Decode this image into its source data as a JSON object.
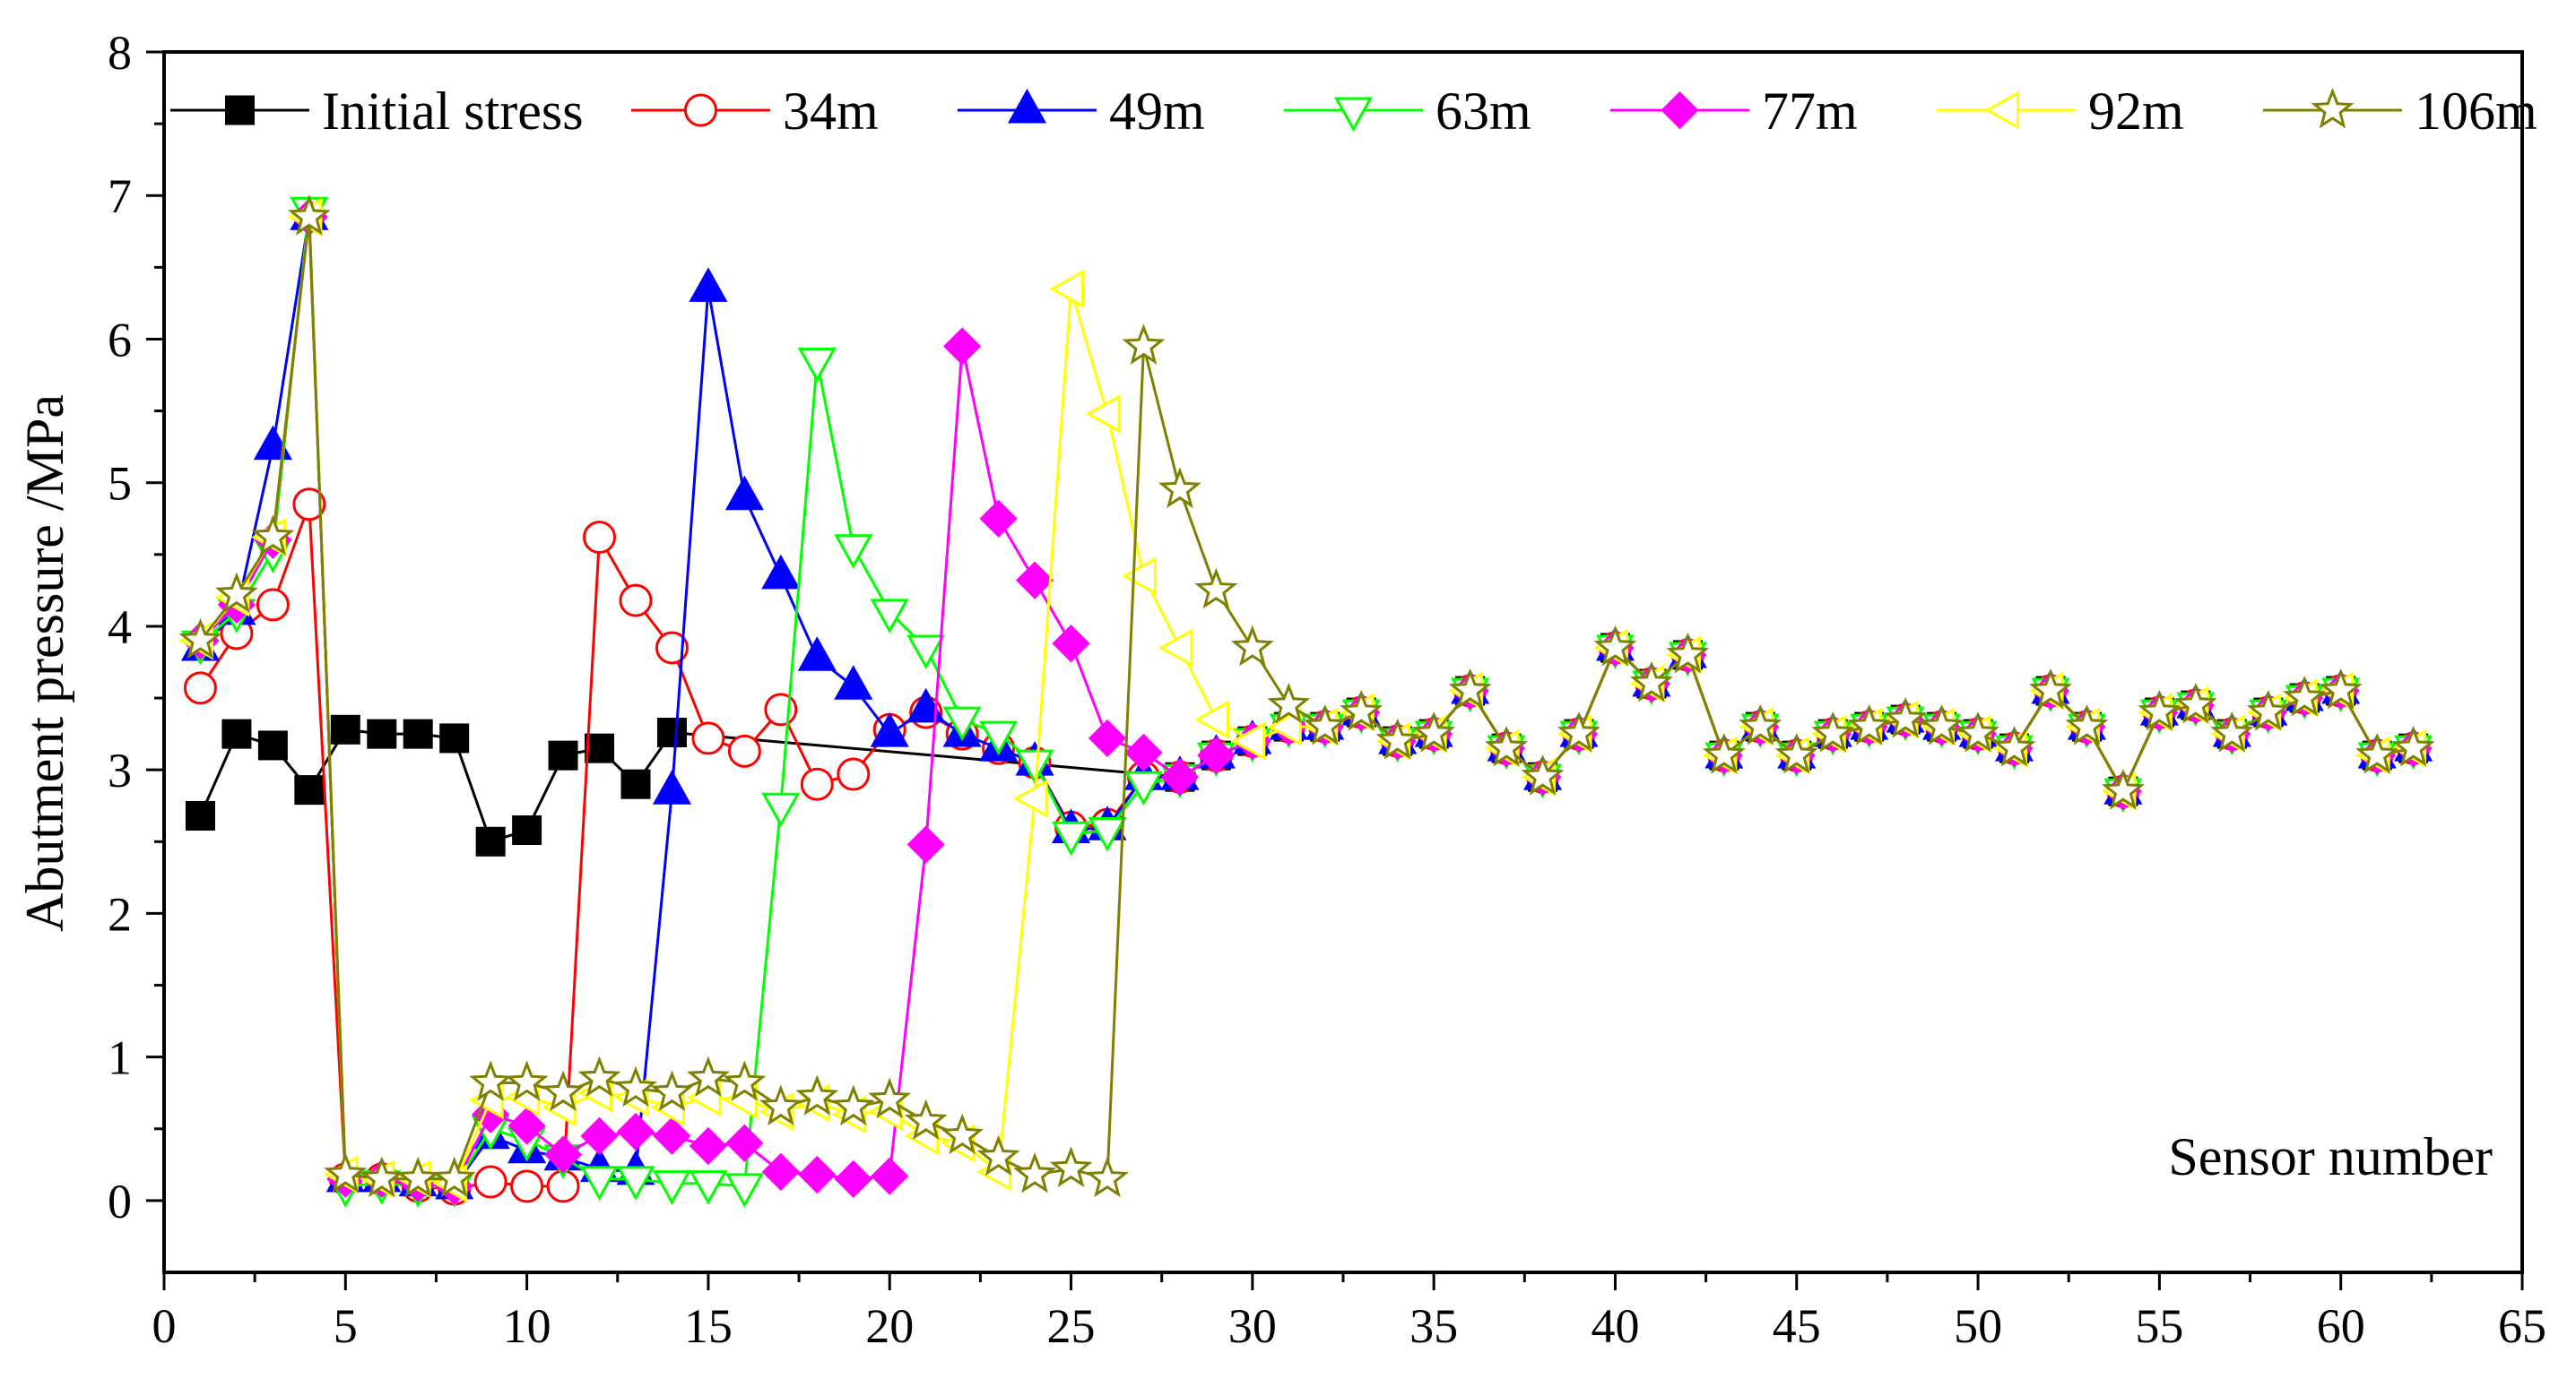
{
  "chart_data": {
    "type": "line",
    "title": "",
    "xlabel": "Sensor number",
    "ylabel": "Abutment pressure /MPa",
    "xlim": [
      0,
      65
    ],
    "ylim": [
      -0.5,
      8
    ],
    "xticks": [
      0,
      5,
      10,
      15,
      20,
      25,
      30,
      35,
      40,
      45,
      50,
      55,
      60,
      65
    ],
    "yticks": [
      0,
      1,
      2,
      3,
      4,
      5,
      6,
      7,
      8
    ],
    "legend_position": "top",
    "tail_x": [
      28,
      29,
      30,
      31,
      32,
      33,
      34,
      35,
      36,
      37,
      38,
      39,
      40,
      41,
      42,
      43,
      44,
      45,
      46,
      47,
      48,
      49,
      50,
      51,
      52,
      53,
      54,
      55,
      56,
      57,
      58,
      59,
      60,
      61,
      62
    ],
    "tail_y": [
      2.95,
      3.1,
      3.2,
      3.3,
      3.3,
      3.4,
      3.2,
      3.25,
      3.55,
      3.15,
      2.95,
      3.25,
      3.85,
      3.6,
      3.8,
      3.1,
      3.3,
      3.1,
      3.25,
      3.3,
      3.35,
      3.3,
      3.25,
      3.15,
      3.55,
      3.3,
      2.85,
      3.4,
      3.45,
      3.25,
      3.4,
      3.5,
      3.55,
      3.1,
      3.15
    ],
    "series": [
      {
        "name": "Initial stress",
        "color": "#000000",
        "marker": "square",
        "x": [
          1,
          2,
          3,
          4,
          5,
          6,
          7,
          8,
          9,
          10,
          11,
          12,
          13,
          14
        ],
        "y": [
          2.68,
          3.25,
          3.17,
          2.86,
          3.28,
          3.25,
          3.25,
          3.22,
          2.5,
          2.58,
          3.1,
          3.15,
          2.9,
          3.26
        ],
        "tail_from": 14
      },
      {
        "name": "34m",
        "color": "#ff0000",
        "marker": "circle",
        "x": [
          1,
          2,
          3,
          4,
          5,
          6,
          7,
          8,
          9,
          10,
          11,
          12,
          13,
          14,
          15,
          16,
          17,
          18,
          19,
          20,
          21,
          22,
          23,
          24,
          25,
          26,
          27
        ],
        "y": [
          3.57,
          3.95,
          4.15,
          4.85,
          0.15,
          0.15,
          0.1,
          0.08,
          0.13,
          0.1,
          0.1,
          4.62,
          4.18,
          3.85,
          3.22,
          3.13,
          3.42,
          2.9,
          2.97,
          3.28,
          3.4,
          3.25,
          3.15,
          3.05,
          2.6,
          2.62,
          2.95
        ],
        "tail_from": 27
      },
      {
        "name": "49m",
        "color": "#0000ff",
        "marker": "triangle-up",
        "x": [
          1,
          2,
          3,
          4,
          5,
          6,
          7,
          8,
          9,
          10,
          11,
          12,
          13,
          14,
          15,
          16,
          17,
          18,
          19,
          20,
          21,
          22,
          23,
          24,
          25,
          26,
          27
        ],
        "y": [
          3.85,
          4.1,
          5.25,
          6.85,
          0.15,
          0.15,
          0.12,
          0.1,
          0.45,
          0.35,
          0.3,
          0.22,
          0.2,
          2.85,
          6.35,
          4.9,
          4.35,
          3.78,
          3.58,
          3.25,
          3.42,
          3.25,
          3.15,
          3.05,
          2.58,
          2.6,
          2.95
        ],
        "tail_from": 27
      },
      {
        "name": "63m",
        "color": "#00ff00",
        "marker": "triangle-down",
        "x": [
          1,
          2,
          3,
          4,
          5,
          6,
          7,
          8,
          9,
          10,
          11,
          12,
          13,
          14,
          15,
          16,
          17,
          18,
          19,
          20,
          21,
          22,
          23,
          24,
          25,
          26,
          27
        ],
        "y": [
          3.88,
          4.1,
          4.52,
          6.9,
          0.1,
          0.12,
          0.1,
          0.1,
          0.5,
          0.42,
          0.3,
          0.15,
          0.15,
          0.12,
          0.12,
          0.1,
          2.75,
          5.85,
          4.55,
          4.1,
          3.85,
          3.35,
          3.25,
          3.05,
          2.55,
          2.58,
          2.9
        ],
        "tail_from": 27
      },
      {
        "name": "77m",
        "color": "#ff00ff",
        "marker": "diamond",
        "x": [
          1,
          2,
          3,
          4,
          5,
          6,
          7,
          8,
          9,
          10,
          11,
          12,
          13,
          14,
          15,
          16,
          17,
          18,
          19,
          20,
          21,
          22,
          23,
          24,
          25,
          26,
          27
        ],
        "y": [
          3.9,
          4.15,
          4.6,
          6.85,
          0.15,
          0.15,
          0.12,
          0.1,
          0.6,
          0.52,
          0.32,
          0.45,
          0.48,
          0.45,
          0.38,
          0.4,
          0.2,
          0.18,
          0.15,
          0.17,
          2.48,
          5.95,
          4.75,
          4.32,
          3.88,
          3.22,
          3.12
        ],
        "tail_from": 27
      },
      {
        "name": "92m",
        "color": "#ffff00",
        "marker": "triangle-left",
        "x": [
          1,
          2,
          3,
          4,
          5,
          6,
          7,
          8,
          9,
          10,
          11,
          12,
          13,
          14,
          15,
          16,
          17,
          18,
          19,
          20,
          21,
          22,
          23,
          24,
          25,
          26,
          27,
          28,
          29
        ],
        "y": [
          3.9,
          4.2,
          4.62,
          6.85,
          0.18,
          0.15,
          0.15,
          0.12,
          0.7,
          0.72,
          0.65,
          0.75,
          0.72,
          0.65,
          0.72,
          0.7,
          0.62,
          0.68,
          0.6,
          0.62,
          0.45,
          0.4,
          0.2,
          2.8,
          6.35,
          5.48,
          4.35,
          3.85,
          3.35
        ],
        "tail_from": 29
      },
      {
        "name": "106m",
        "color": "#808000",
        "marker": "star",
        "x": [
          1,
          2,
          3,
          4,
          5,
          6,
          7,
          8,
          9,
          10,
          11,
          12,
          13,
          14,
          15,
          16,
          17,
          18,
          19,
          20,
          21,
          22,
          23,
          24,
          25,
          26,
          27,
          28,
          29,
          30,
          31
        ],
        "y": [
          3.9,
          4.22,
          4.62,
          6.85,
          0.18,
          0.15,
          0.15,
          0.15,
          0.82,
          0.82,
          0.75,
          0.85,
          0.78,
          0.75,
          0.85,
          0.82,
          0.65,
          0.72,
          0.65,
          0.7,
          0.55,
          0.45,
          0.3,
          0.18,
          0.22,
          0.15,
          5.95,
          4.95,
          4.25,
          3.85,
          3.45
        ],
        "tail_from": 31
      }
    ]
  }
}
